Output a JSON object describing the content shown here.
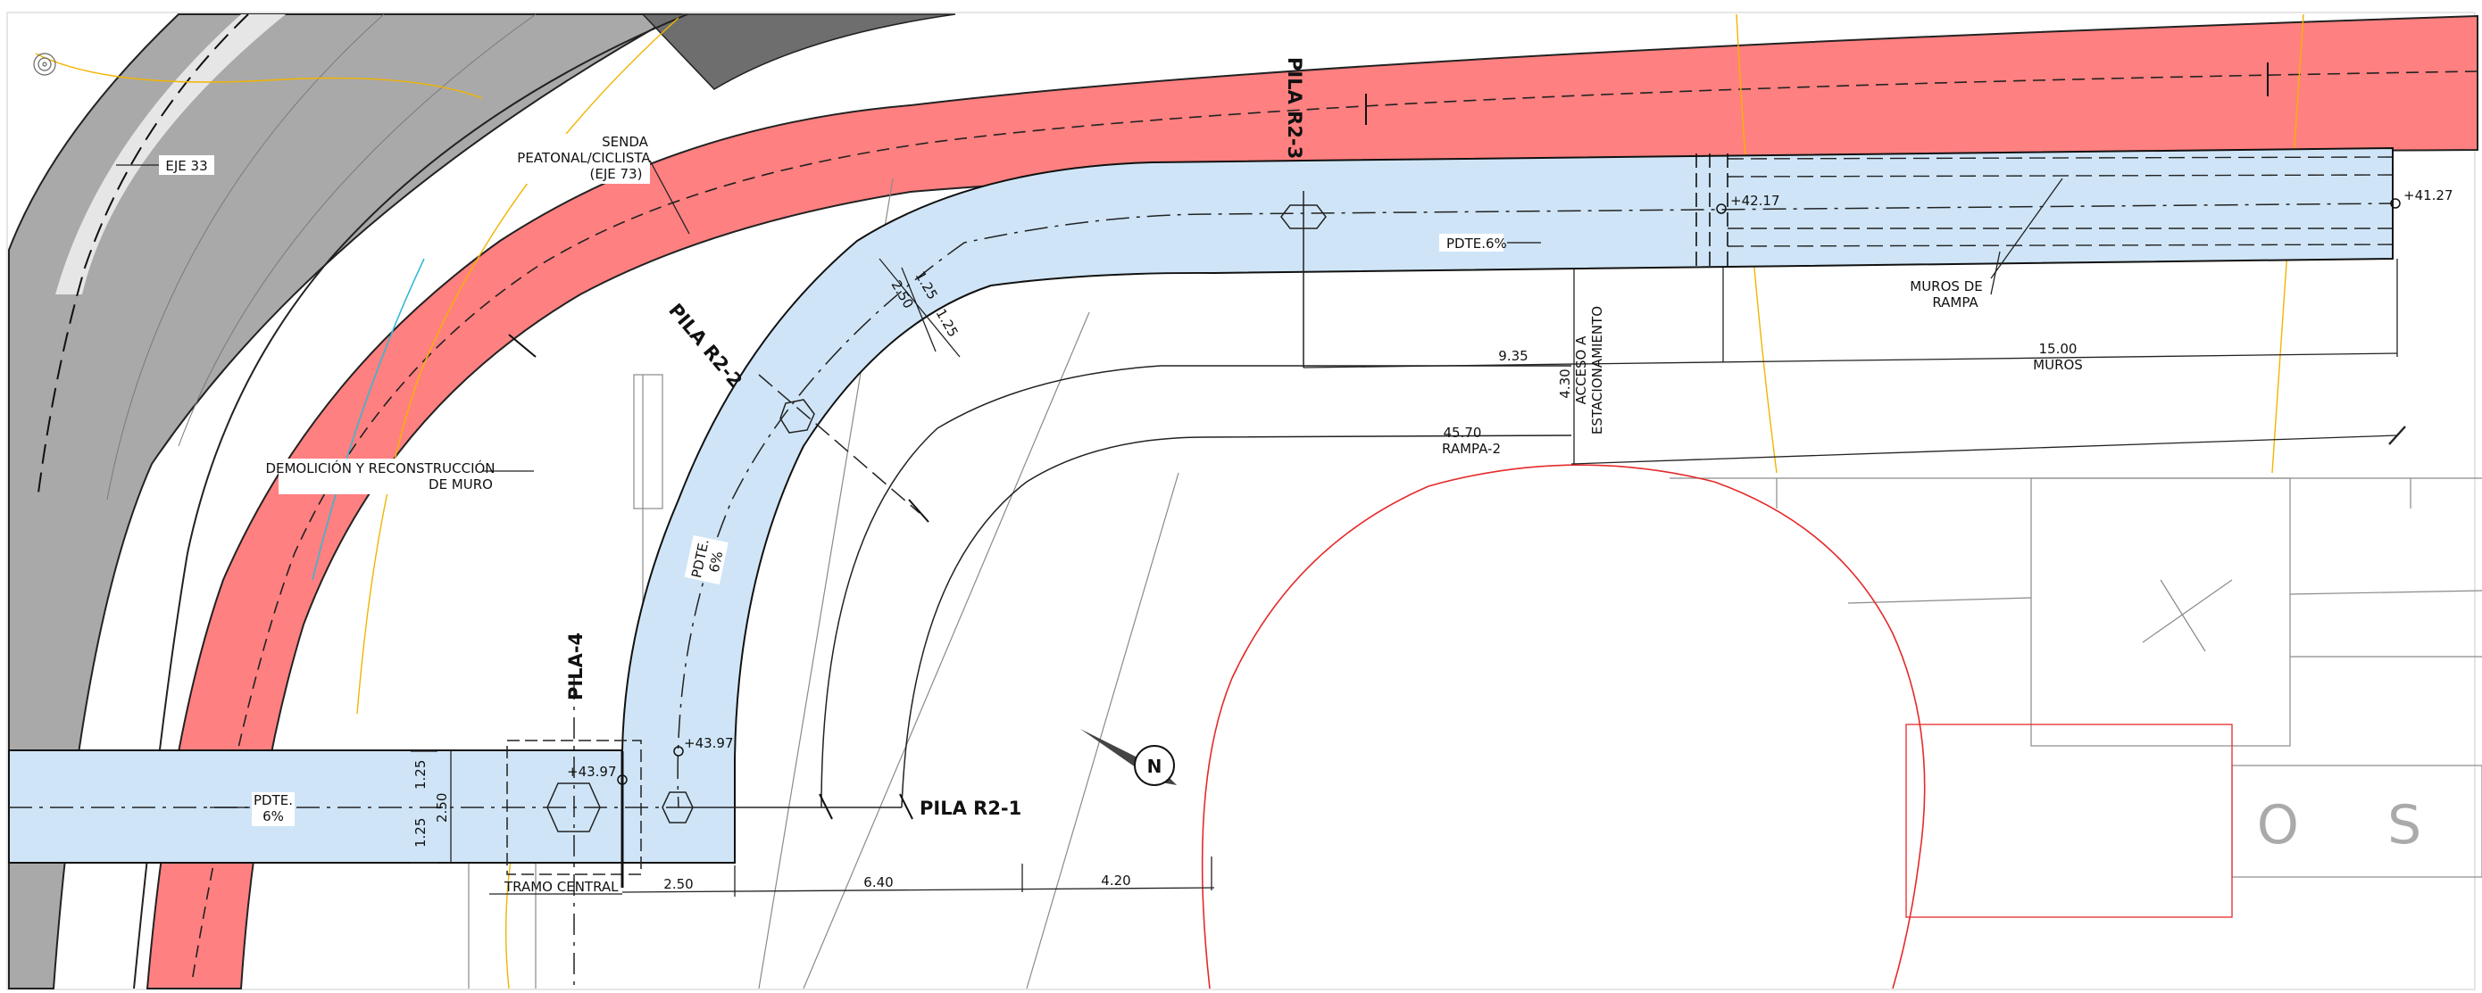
{
  "drawing": {
    "colors": {
      "ramp_fill": "#cfe5f7",
      "path_fill": "#ff8080",
      "road_fill": "#a9a9a9",
      "road_dark": "#6e6e6e",
      "roundabout": "#e52a2a",
      "contour": "#f2b400",
      "line": "#111111"
    },
    "labels": {
      "eje33": "EJE 33",
      "senda": [
        "SENDA",
        "PEATONAL/CICLISTA",
        "(EJE 73)"
      ],
      "demolicion": [
        "DEMOLICIÓN Y RECONSTRUCCIÓN",
        "DE MURO"
      ],
      "pila_r2_3": "PILA R2-3",
      "pila_r2_2": "PILA R2-2",
      "pila_r2_1": "PILA R2-1",
      "pila_4": "PILA-4",
      "pdte_top": "PDTE.6%",
      "pdte_curve": [
        "PDTE.",
        "6%"
      ],
      "pdte_left": [
        "PDTE.",
        "6%"
      ],
      "muros_rampa": [
        "MUROS DE",
        "RAMPA"
      ],
      "acceso": [
        "4.30",
        "ACCESO A",
        "ESTACIONAMIENTO"
      ],
      "tramo_central": "TRAMO CENTRAL",
      "muros": "MUROS",
      "rampa2": "RAMPA-2",
      "stripe_text": "O S"
    },
    "dimensions": {
      "d935": "9.35",
      "d1500": "15.00",
      "d4570": "45.70",
      "d125a": "1.25",
      "d250a": "2.50",
      "d125b": "1.25",
      "d125c": "1.25",
      "d250b": "2.50",
      "d125d": "1.25",
      "d250c": "2.50",
      "d640": "6.40",
      "d420": "4.20"
    },
    "levels": {
      "e4217": "+42.17",
      "e4127": "+41.27",
      "e4397a": "+43.97",
      "e4397b": "+43.97"
    },
    "north": "N"
  }
}
